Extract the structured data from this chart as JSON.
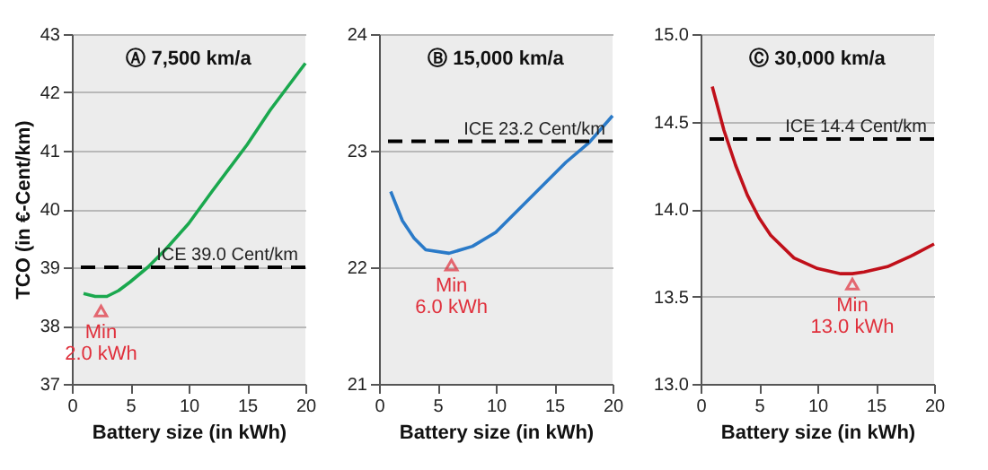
{
  "chart_data": [
    {
      "type": "line",
      "title": "Ⓐ 7,500 km/a",
      "xlabel": "Battery size (in kWh)",
      "ylabel": "TCO (in €-Cent/km)",
      "x": [
        1,
        2,
        3,
        4,
        5,
        6.5,
        8,
        10,
        12,
        15,
        17,
        20
      ],
      "series": [
        {
          "color": "#1aa84e",
          "values": [
            38.55,
            38.5,
            38.5,
            38.6,
            38.75,
            39.0,
            39.3,
            39.75,
            40.3,
            41.1,
            41.7,
            42.5
          ]
        },
        {
          "type": "scatter",
          "marker": "triangle",
          "color": "#e0303c",
          "x": [
            2.5
          ],
          "values": [
            38.25
          ]
        }
      ],
      "xlim": [
        0,
        20
      ],
      "xticks": [
        0,
        5,
        10,
        15,
        20
      ],
      "ylim": [
        37,
        43
      ],
      "yticks": [
        37,
        38,
        39,
        40,
        41,
        42,
        43
      ],
      "grid": "y",
      "ref_lines": [
        {
          "axis": "y",
          "value": 39.0,
          "label": "ICE  39.0 Cent/km",
          "color": "#000000",
          "line_style": "dashed"
        }
      ],
      "annotations": [
        {
          "text": "Min\n2.0 kWh",
          "x": 2.5,
          "y": 38.25
        }
      ]
    },
    {
      "type": "line",
      "title": "Ⓑ 15,000 km/a",
      "xlabel": "Battery size (in kWh)",
      "x": [
        1,
        2,
        3,
        4,
        6,
        8,
        10,
        12,
        14,
        16,
        18,
        20
      ],
      "series": [
        {
          "color": "#2a7ac8",
          "values": [
            22.65,
            22.4,
            22.25,
            22.15,
            22.12,
            22.18,
            22.3,
            22.5,
            22.7,
            22.9,
            23.07,
            23.3
          ]
        },
        {
          "type": "scatter",
          "marker": "triangle",
          "color": "#e0303c",
          "x": [
            6.2
          ],
          "values": [
            22.02
          ]
        }
      ],
      "xlim": [
        0,
        20
      ],
      "xticks": [
        0,
        5,
        10,
        15,
        20
      ],
      "ylim": [
        21,
        24
      ],
      "yticks": [
        21,
        22,
        23,
        24
      ],
      "grid": "y",
      "ref_lines": [
        {
          "axis": "y",
          "value": 23.08,
          "label": "ICE  23.2 Cent/km",
          "color": "#000000",
          "line_style": "dashed"
        }
      ],
      "annotations": [
        {
          "text": "Min\n6.0 kWh",
          "x": 6.2,
          "y": 22.02
        }
      ]
    },
    {
      "type": "line",
      "title": "Ⓒ 30,000 km/a",
      "xlabel": "Battery size (in kWh)",
      "x": [
        1,
        2,
        3,
        4,
        5,
        6,
        8,
        10,
        12,
        13,
        14,
        16,
        18,
        20
      ],
      "series": [
        {
          "color": "#c0101a",
          "values": [
            14.7,
            14.45,
            14.25,
            14.08,
            13.95,
            13.85,
            13.72,
            13.66,
            13.63,
            13.63,
            13.64,
            13.67,
            13.73,
            13.8
          ]
        },
        {
          "type": "scatter",
          "marker": "triangle",
          "color": "#e0303c",
          "x": [
            13
          ],
          "values": [
            13.57
          ]
        }
      ],
      "xlim": [
        0,
        20
      ],
      "xticks": [
        0,
        5,
        10,
        15,
        20
      ],
      "ylim": [
        13,
        15
      ],
      "yticks": [
        {
          "value": 13,
          "label": "13.0"
        },
        {
          "value": 13.5,
          "label": "13.5"
        },
        {
          "value": 14,
          "label": "14.0"
        },
        {
          "value": 14.5,
          "label": "14.5"
        },
        {
          "value": 15,
          "label": "15.0"
        }
      ],
      "grid": "y",
      "ref_lines": [
        {
          "axis": "y",
          "value": 14.4,
          "label": "ICE  14.4 Cent/km",
          "color": "#000000",
          "line_style": "dashed"
        }
      ],
      "annotations": [
        {
          "text": "Min\n13.0 kWh",
          "x": 13,
          "y": 13.57
        }
      ]
    }
  ]
}
